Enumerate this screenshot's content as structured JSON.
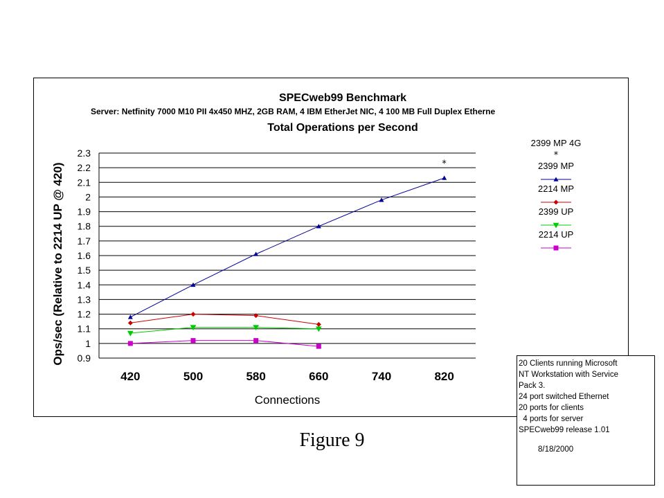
{
  "figure_caption": "Figure 9",
  "chart_data": {
    "type": "line",
    "title": "SPECweb99 Benchmark",
    "subtitle": "Server: Netfinity 7000 M10 PII 4x450 MHZ, 2GB RAM, 4 IBM EtherJet NIC, 4 100 MB Full Duplex Etherne",
    "title2": "Total Operations per Second",
    "xlabel": "Connections",
    "ylabel": "Ops/sec (Relative to 2214 UP @ 420)",
    "categories": [
      "420",
      "500",
      "580",
      "660",
      "740",
      "820"
    ],
    "yticks": [
      "2.3",
      "2.2",
      "2.1",
      "2",
      "1.9",
      "1.8",
      "1.7",
      "1.6",
      "1.5",
      "1.4",
      "1.3",
      "1.2",
      "1.1",
      "1",
      "0.9"
    ],
    "ylim": [
      0.9,
      2.3
    ],
    "grid": true,
    "legend_position": "right",
    "series": [
      {
        "name": "2399 MP 4G",
        "color": "#000000",
        "marker": "star",
        "line": false,
        "values": [
          null,
          null,
          null,
          null,
          null,
          2.24
        ]
      },
      {
        "name": "2399 MP",
        "color": "#000099",
        "marker": "triangle-up",
        "line": true,
        "values": [
          1.18,
          1.4,
          1.61,
          1.8,
          1.98,
          2.13
        ]
      },
      {
        "name": "2214 MP",
        "color": "#cc0000",
        "marker": "diamond",
        "line": true,
        "values": [
          1.14,
          1.2,
          1.19,
          1.13,
          null,
          null
        ]
      },
      {
        "name": "2399 UP",
        "color": "#00cc00",
        "marker": "triangle-down",
        "line": true,
        "values": [
          1.07,
          1.11,
          1.11,
          1.1,
          null,
          null
        ]
      },
      {
        "name": "2214 UP",
        "color": "#cc00cc",
        "marker": "square",
        "line": true,
        "values": [
          1.0,
          1.02,
          1.02,
          0.98,
          null,
          null
        ]
      }
    ]
  },
  "notes": {
    "lines": [
      "20 Clients running Microsoft",
      "NT Workstation with Service",
      "Pack 3.",
      "24 port switched Ethernet",
      "20 ports for clients",
      "  4 ports for server",
      "SPECweb99 release 1.01"
    ],
    "date": "8/18/2000"
  }
}
